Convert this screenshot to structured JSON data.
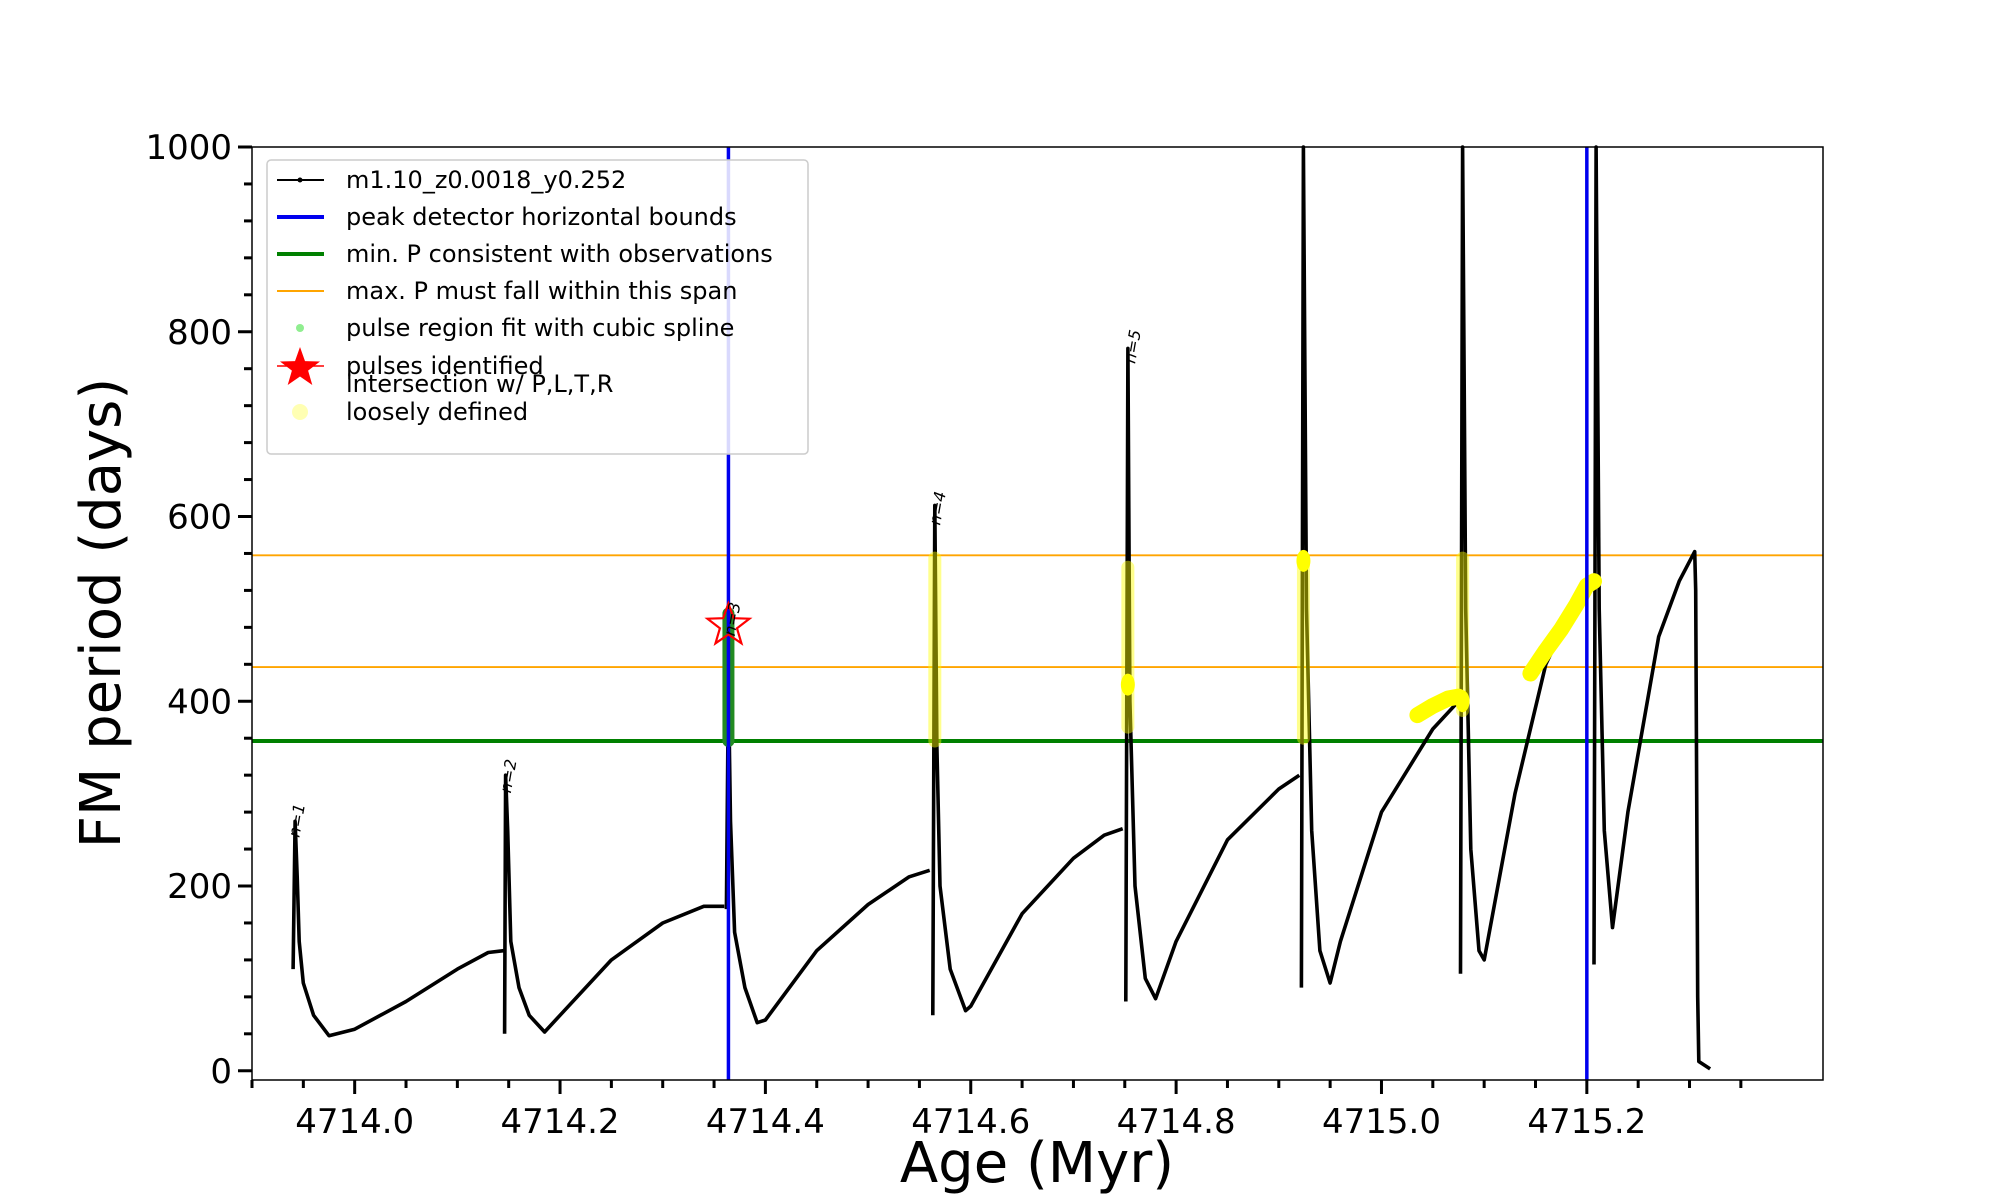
{
  "chart_data": {
    "type": "line",
    "title": "",
    "xlabel": "Age (Myr)",
    "ylabel": "FM period (days)",
    "xlim": [
      4713.9,
      4715.43
    ],
    "ylim": [
      -10,
      1000
    ],
    "xticks": [
      "4714.0",
      "4714.2",
      "4714.4",
      "4714.6",
      "4714.8",
      "4715.0",
      "4715.2"
    ],
    "xtick_values": [
      4714.0,
      4714.2,
      4714.4,
      4714.6,
      4714.8,
      4715.0,
      4715.2
    ],
    "yticks": [
      "0",
      "200",
      "400",
      "600",
      "800",
      "1000"
    ],
    "ytick_values": [
      0,
      200,
      400,
      600,
      800,
      1000
    ],
    "legend_position": "upper-left",
    "legend": [
      {
        "label": "m1.10_z0.0018_y0.252",
        "marker": "line-dot",
        "color": "#000000"
      },
      {
        "label": "peak detector horizontal bounds",
        "marker": "line",
        "color": "#0000ee"
      },
      {
        "label": "min. P consistent with observations",
        "marker": "line",
        "color": "#008000"
      },
      {
        "label": "max. P must fall within this span",
        "marker": "line-thin",
        "color": "#ffa500"
      },
      {
        "label": "pulse region fit with cubic spline",
        "marker": "dot",
        "color": "#90ee90"
      },
      {
        "label": "pulses identified",
        "marker": "star",
        "color": "#ff0000"
      },
      {
        "label": "intersection w/ P,L,T,R",
        "label2": "loosely defined",
        "marker": "circle",
        "color": "#ffff80"
      }
    ],
    "vlines": [
      4714.364,
      4715.2
    ],
    "min_period": 357,
    "max_span": [
      437,
      558
    ],
    "colors": {
      "series": "#000000",
      "bounds": "#0000ee",
      "minp": "#008000",
      "span": "#ffa500",
      "spline": "#228b22",
      "star": "#ff0000",
      "intersect": "#ffff00"
    },
    "series": [
      {
        "name": "m1.10_z0.0018_y0.252",
        "segments": [
          [
            [
              4713.94,
              110
            ],
            [
              4713.942,
              270
            ],
            [
              4713.944,
              210
            ],
            [
              4713.946,
              140
            ],
            [
              4713.95,
              95
            ],
            [
              4713.96,
              60
            ],
            [
              4713.975,
              38
            ],
            [
              4714.0,
              45
            ],
            [
              4714.05,
              75
            ],
            [
              4714.1,
              110
            ],
            [
              4714.13,
              128
            ],
            [
              4714.145,
              130
            ]
          ],
          [
            [
              4714.146,
              40
            ],
            [
              4714.147,
              320
            ],
            [
              4714.149,
              260
            ],
            [
              4714.152,
              140
            ],
            [
              4714.16,
              90
            ],
            [
              4714.17,
              60
            ],
            [
              4714.185,
              42
            ],
            [
              4714.2,
              60
            ],
            [
              4714.25,
              120
            ],
            [
              4714.3,
              160
            ],
            [
              4714.34,
              178
            ],
            [
              4714.36,
              178
            ]
          ],
          [
            [
              4714.362,
              175
            ],
            [
              4714.364,
              420
            ],
            [
              4714.366,
              270
            ],
            [
              4714.37,
              150
            ],
            [
              4714.38,
              90
            ],
            [
              4714.392,
              52
            ],
            [
              4714.4,
              55
            ],
            [
              4714.45,
              130
            ],
            [
              4714.5,
              180
            ],
            [
              4714.54,
              210
            ],
            [
              4714.56,
              217
            ]
          ],
          [
            [
              4714.563,
              60
            ],
            [
              4714.565,
              612
            ],
            [
              4714.567,
              350
            ],
            [
              4714.57,
              200
            ],
            [
              4714.58,
              110
            ],
            [
              4714.595,
              65
            ],
            [
              4714.6,
              70
            ],
            [
              4714.65,
              170
            ],
            [
              4714.7,
              230
            ],
            [
              4714.73,
              255
            ],
            [
              4714.748,
              262
            ]
          ],
          [
            [
              4714.751,
              75
            ],
            [
              4714.753,
              782
            ],
            [
              4714.755,
              400
            ],
            [
              4714.76,
              200
            ],
            [
              4714.77,
              100
            ],
            [
              4714.78,
              78
            ],
            [
              4714.8,
              140
            ],
            [
              4714.85,
              250
            ],
            [
              4714.9,
              305
            ],
            [
              4714.92,
              320
            ]
          ],
          [
            [
              4714.922,
              90
            ],
            [
              4714.924,
              1000
            ],
            [
              4714.927,
              500
            ],
            [
              4714.932,
              260
            ],
            [
              4714.94,
              130
            ],
            [
              4714.95,
              95
            ],
            [
              4714.96,
              140
            ],
            [
              4715.0,
              280
            ],
            [
              4715.05,
              370
            ],
            [
              4715.075,
              400
            ]
          ],
          [
            [
              4715.077,
              105
            ],
            [
              4715.079,
              1000
            ],
            [
              4715.082,
              500
            ],
            [
              4715.087,
              240
            ],
            [
              4715.095,
              130
            ],
            [
              4715.1,
              120
            ],
            [
              4715.13,
              300
            ],
            [
              4715.16,
              440
            ],
            [
              4715.19,
              510
            ],
            [
              4715.205,
              530
            ]
          ],
          [
            [
              4715.207,
              115
            ],
            [
              4715.209,
              1000
            ],
            [
              4715.212,
              500
            ],
            [
              4715.217,
              260
            ],
            [
              4715.225,
              155
            ],
            [
              4715.24,
              280
            ],
            [
              4715.27,
              470
            ],
            [
              4715.29,
              530
            ],
            [
              4715.305,
              562
            ],
            [
              4715.306,
              520
            ],
            [
              4715.307,
              300
            ],
            [
              4715.308,
              80
            ],
            [
              4715.309,
              10
            ],
            [
              4715.32,
              2
            ]
          ]
        ]
      }
    ],
    "annotations": [
      {
        "text": "n=1",
        "x": 4713.946,
        "y": 252
      },
      {
        "text": "n=2",
        "x": 4714.152,
        "y": 300
      },
      {
        "text": "n=3",
        "x": 4714.37,
        "y": 470
      },
      {
        "text": "n=4",
        "x": 4714.57,
        "y": 590
      },
      {
        "text": "n=5",
        "x": 4714.76,
        "y": 765
      }
    ],
    "pulses_identified": [
      {
        "x": 4714.364,
        "y": 482
      }
    ],
    "spline_region": {
      "x": 4714.364,
      "y_range": [
        357,
        495
      ]
    },
    "intersections": {
      "columns": [
        {
          "x": 4714.565,
          "y_range": [
            357,
            555
          ]
        },
        {
          "x": 4714.753,
          "y_range": [
            372,
            545
          ]
        },
        {
          "x": 4714.924,
          "y_range": [
            360,
            555
          ]
        },
        {
          "x": 4715.079,
          "y_range": [
            390,
            555
          ]
        }
      ],
      "blobs": [
        {
          "x": 4714.753,
          "y": 418
        },
        {
          "x": 4714.924,
          "y": 552
        },
        {
          "x": 4715.079,
          "y": 400
        }
      ],
      "curves": [
        [
          [
            4715.035,
            385
          ],
          [
            4715.05,
            395
          ],
          [
            4715.065,
            403
          ],
          [
            4715.075,
            405
          ]
        ],
        [
          [
            4715.145,
            430
          ],
          [
            4715.16,
            455
          ],
          [
            4715.175,
            478
          ],
          [
            4715.19,
            505
          ],
          [
            4715.2,
            525
          ],
          [
            4715.207,
            530
          ]
        ]
      ]
    }
  }
}
